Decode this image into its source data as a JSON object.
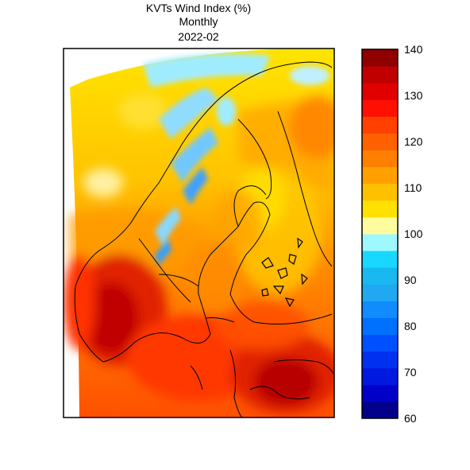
{
  "header": {
    "title": "KVTs Wind Index (%)",
    "period": "Monthly",
    "date": "2022-02"
  },
  "colorbar": {
    "min": 60,
    "max": 140,
    "step": 5,
    "tick_labels": [
      "140",
      "130",
      "120",
      "110",
      "100",
      "90",
      "80",
      "70",
      "60"
    ],
    "colors": [
      "#00008b",
      "#0000c8",
      "#0018e0",
      "#0030f0",
      "#0050ff",
      "#0070ff",
      "#108cff",
      "#20a8f0",
      "#18b8f0",
      "#18d8ff",
      "#a0f8ff",
      "#fffca0",
      "#ffe000",
      "#ffc000",
      "#ffa000",
      "#ff8000",
      "#ff6000",
      "#ff4000",
      "#ff1000",
      "#e00000",
      "#c00000",
      "#900000"
    ]
  },
  "map": {
    "region": "Fennoscandia",
    "dominant_colors": [
      "#ffd800",
      "#ffa800",
      "#ff6000",
      "#e02000",
      "#90e0ff"
    ]
  }
}
